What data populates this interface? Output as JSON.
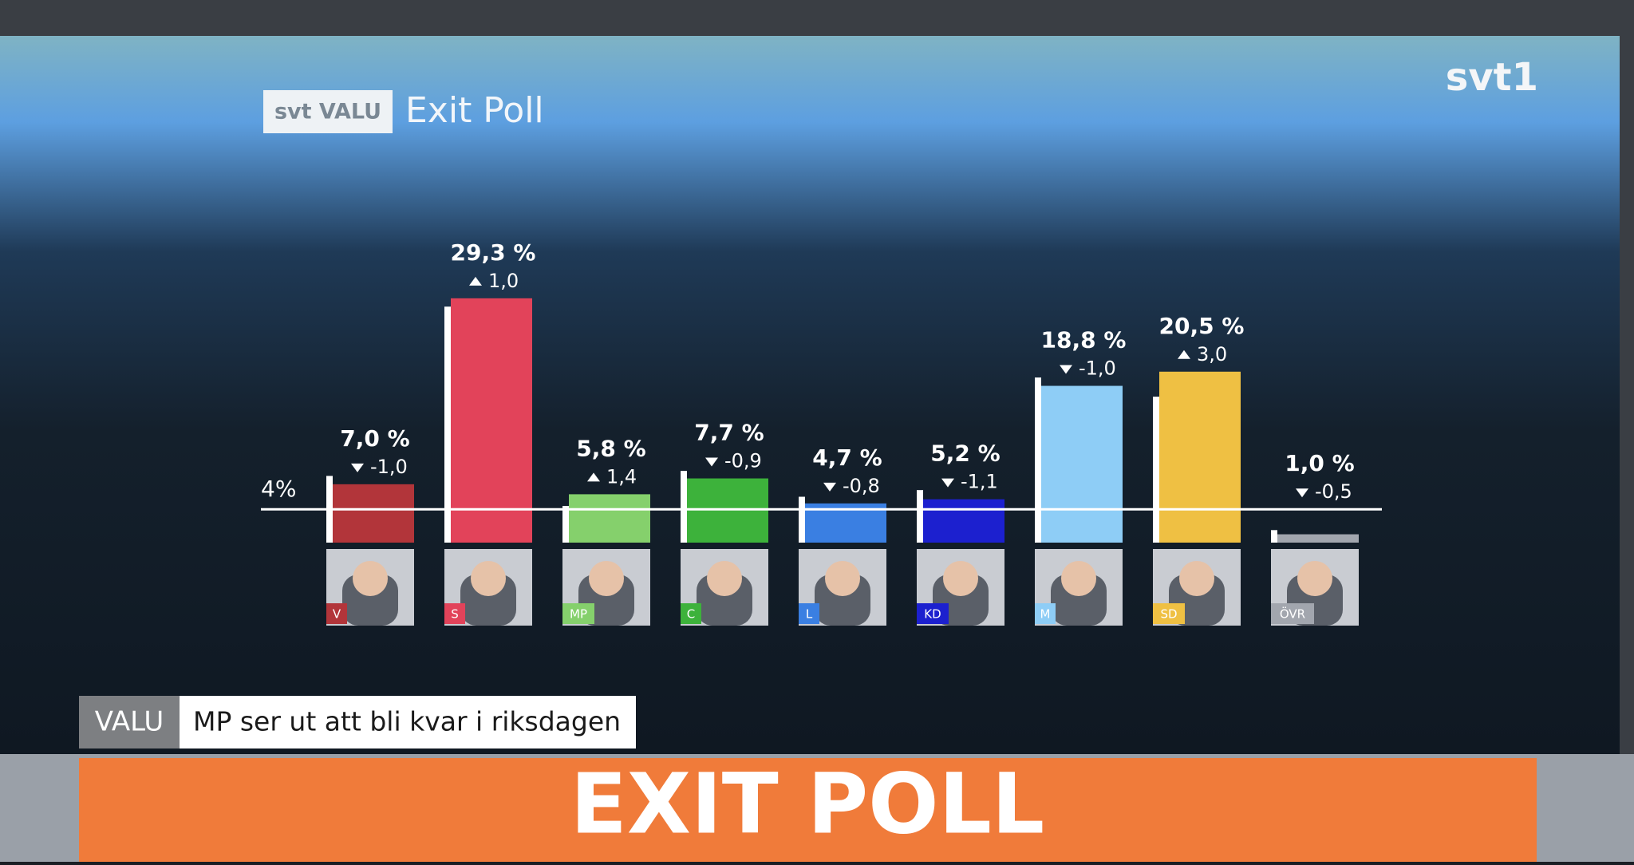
{
  "brand": "svt VALU",
  "heading": "Exit Poll",
  "channel": "svt1",
  "ticker": {
    "tag": "VALU",
    "text": "MP ser ut att bli kvar i riksdagen"
  },
  "banner": "EXIT POLL",
  "chart_data": {
    "type": "bar",
    "categories": [
      "V",
      "S",
      "MP",
      "C",
      "L",
      "KD",
      "M",
      "SD",
      "ÖVR"
    ],
    "values": [
      7.0,
      29.3,
      5.8,
      7.7,
      4.7,
      5.2,
      18.8,
      20.5,
      1.0
    ],
    "value_labels": [
      "7,0 %",
      "29,3 %",
      "5,8 %",
      "7,7 %",
      "4,7 %",
      "5,2 %",
      "18,8 %",
      "20,5 %",
      "1,0 %"
    ],
    "changes": [
      -1.0,
      1.0,
      1.4,
      -0.9,
      -0.8,
      -1.1,
      -1.0,
      3.0,
      -0.5
    ],
    "change_labels": [
      "-1,0",
      "1,0",
      "1,4",
      "-0,9",
      "-0,8",
      "-1,1",
      "-1,0",
      "3,0",
      "-0,5"
    ],
    "colors": [
      "#b2353a",
      "#e2435a",
      "#85d06c",
      "#3db23b",
      "#3a7fe2",
      "#1c20cf",
      "#8ecdf6",
      "#efc043",
      "#a2a6ae"
    ],
    "ylim": [
      0,
      35
    ],
    "threshold": {
      "value": 4,
      "label": "4%"
    }
  }
}
